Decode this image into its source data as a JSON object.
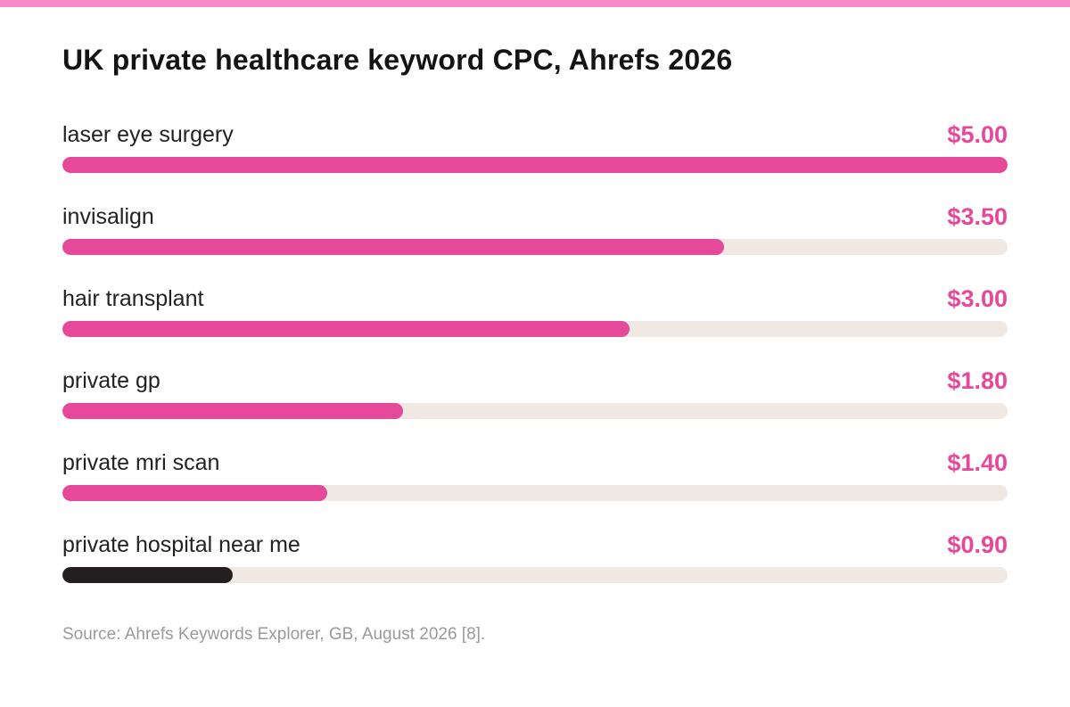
{
  "chart_data": {
    "type": "bar",
    "orientation": "horizontal",
    "title": "UK private healthcare keyword CPC, Ahrefs 2026",
    "categories": [
      "laser eye surgery",
      "invisalign",
      "hair transplant",
      "private gp",
      "private mri scan",
      "private hospital near me"
    ],
    "values": [
      5.0,
      3.5,
      3.0,
      1.8,
      1.4,
      0.9
    ],
    "value_labels": [
      "$5.00",
      "$3.50",
      "$3.00",
      "$1.80",
      "$1.40",
      "$0.90"
    ],
    "xlim": [
      0,
      5.0
    ],
    "grid": false,
    "legend": "none",
    "source": "Source: Ahrefs Keywords Explorer, GB, August 2026 [8]."
  },
  "colors": {
    "accent": "#E6489A",
    "top_bar": "#F58BC8",
    "highlight_bar": "#231F20",
    "track": "#F0E8E3",
    "title": "#141414",
    "label": "#222222",
    "source": "#9A9A9A"
  },
  "highlight_index": 5
}
